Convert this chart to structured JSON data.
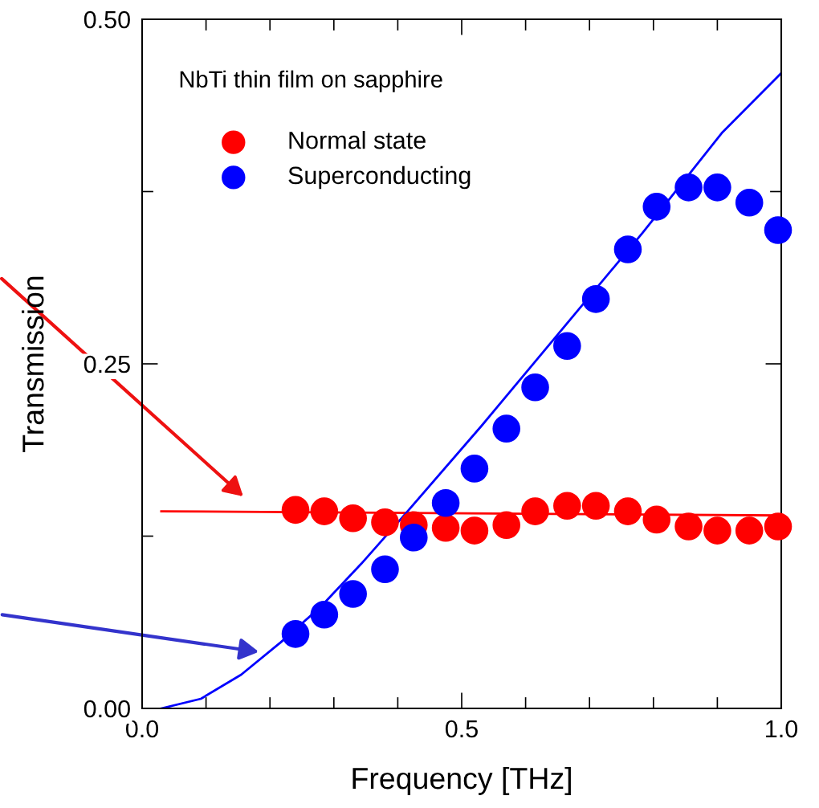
{
  "chart_data": {
    "type": "scatter",
    "xlabel": "Frequency [THz]",
    "ylabel": "Transmission",
    "annotations": [
      "NbTi thin film on sapphire"
    ],
    "xlim": [
      0.0,
      1.0
    ],
    "ylim": [
      0.0,
      0.5
    ],
    "xticks": [
      {
        "value": 0.0,
        "label": "0.0"
      },
      {
        "value": 0.1,
        "label": null
      },
      {
        "value": 0.2,
        "label": null
      },
      {
        "value": 0.3,
        "label": null
      },
      {
        "value": 0.4,
        "label": null
      },
      {
        "value": 0.5,
        "label": "0.5"
      },
      {
        "value": 0.6,
        "label": null
      },
      {
        "value": 0.7,
        "label": null
      },
      {
        "value": 0.8,
        "label": null
      },
      {
        "value": 0.9,
        "label": null
      },
      {
        "value": 1.0,
        "label": "1.0"
      }
    ],
    "yticks": [
      {
        "value": 0.0,
        "label": "0.00"
      },
      {
        "value": 0.125,
        "label": null
      },
      {
        "value": 0.25,
        "label": "0.25"
      },
      {
        "value": 0.375,
        "label": null
      },
      {
        "value": 0.5,
        "label": "0.50"
      }
    ],
    "legend": "top left",
    "grid": false,
    "series": [
      {
        "name": "Normal state",
        "marker": "circle",
        "color": "#ff0000",
        "x": [
          0.24,
          0.285,
          0.33,
          0.38,
          0.425,
          0.475,
          0.52,
          0.57,
          0.615,
          0.665,
          0.71,
          0.76,
          0.805,
          0.855,
          0.9,
          0.95,
          0.995
        ],
        "values": [
          0.144,
          0.143,
          0.138,
          0.135,
          0.133,
          0.131,
          0.129,
          0.133,
          0.143,
          0.147,
          0.147,
          0.143,
          0.137,
          0.132,
          0.129,
          0.129,
          0.132
        ]
      },
      {
        "name": "Superconducting",
        "marker": "circle",
        "color": "#0000ff",
        "x": [
          0.24,
          0.285,
          0.33,
          0.38,
          0.425,
          0.475,
          0.52,
          0.57,
          0.615,
          0.665,
          0.71,
          0.76,
          0.805,
          0.855,
          0.9,
          0.95,
          0.995
        ],
        "values": [
          0.054,
          0.068,
          0.083,
          0.101,
          0.124,
          0.149,
          0.174,
          0.203,
          0.233,
          0.263,
          0.297,
          0.333,
          0.364,
          0.378,
          0.378,
          0.367,
          0.347
        ]
      },
      {
        "type": "line",
        "line_style": "solid",
        "color": "#ff0000",
        "x": [
          0.03,
          1.0
        ],
        "values": [
          0.143,
          0.14
        ]
      },
      {
        "type": "line",
        "line_style": "solid",
        "color": "#0000ff",
        "x": [
          0.03,
          0.092,
          0.155,
          0.217,
          0.28,
          0.343,
          0.406,
          0.531,
          0.657,
          0.783,
          0.908,
          1.0
        ],
        "values": [
          0.0,
          0.007,
          0.0245,
          0.048,
          0.074,
          0.105,
          0.138,
          0.205,
          0.275,
          0.345,
          0.418,
          0.461
        ]
      }
    ]
  }
}
